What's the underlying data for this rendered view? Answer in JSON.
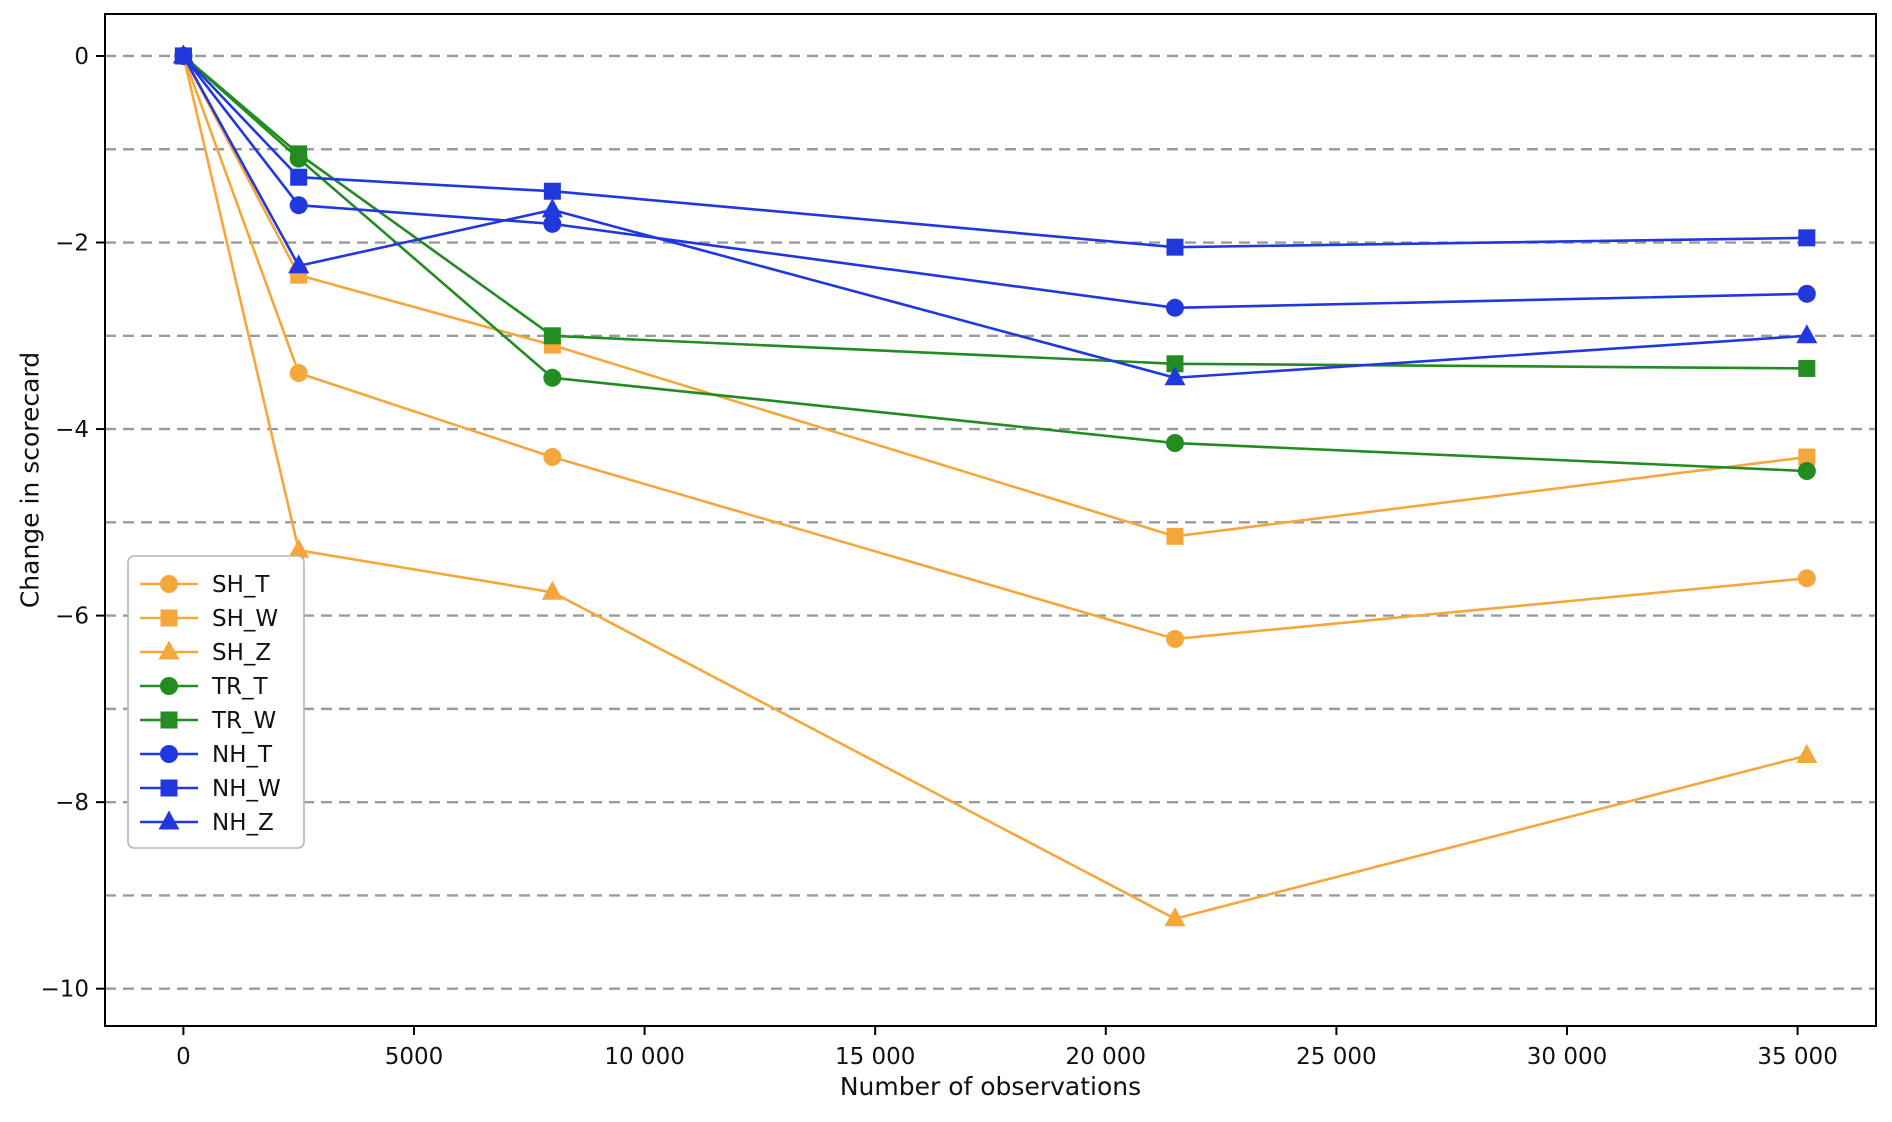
{
  "chart_data": {
    "type": "line",
    "title": "",
    "xlabel": "Number of observations",
    "ylabel": "Change in scorecard",
    "x": [
      0,
      2500,
      8000,
      21500,
      35200
    ],
    "series": [
      {
        "name": "SH_T",
        "color": "#F6A73B",
        "marker": "circle",
        "values": [
          0,
          -3.4,
          -4.3,
          -6.25,
          -5.6
        ]
      },
      {
        "name": "SH_W",
        "color": "#F6A73B",
        "marker": "square",
        "values": [
          0,
          -2.35,
          -3.1,
          -5.15,
          -4.3
        ]
      },
      {
        "name": "SH_Z",
        "color": "#F6A73B",
        "marker": "triangle",
        "values": [
          0,
          -5.3,
          -5.75,
          -9.25,
          -7.5
        ]
      },
      {
        "name": "TR_T",
        "color": "#228B22",
        "marker": "circle",
        "values": [
          0,
          -1.1,
          -3.45,
          -4.15,
          -4.45
        ]
      },
      {
        "name": "TR_W",
        "color": "#228B22",
        "marker": "square",
        "values": [
          0,
          -1.05,
          -3.0,
          -3.3,
          -3.35
        ]
      },
      {
        "name": "NH_T",
        "color": "#2138DF",
        "marker": "circle",
        "values": [
          0,
          -1.6,
          -1.8,
          -2.7,
          -2.55
        ]
      },
      {
        "name": "NH_W",
        "color": "#2138DF",
        "marker": "square",
        "values": [
          0,
          -1.3,
          -1.45,
          -2.05,
          -1.95
        ]
      },
      {
        "name": "NH_Z",
        "color": "#2138DF",
        "marker": "triangle",
        "values": [
          0,
          -2.25,
          -1.65,
          -3.45,
          -3.0
        ]
      }
    ],
    "xticks": {
      "values": [
        0,
        5000,
        10000,
        15000,
        20000,
        25000,
        30000,
        35000
      ],
      "labels": [
        "0",
        "5000",
        "10 000",
        "15 000",
        "20 000",
        "25 000",
        "30 000",
        "35 000"
      ]
    },
    "yticks": {
      "values": [
        0,
        -2,
        -4,
        -6,
        -8,
        -10
      ],
      "labels": [
        "0",
        "−2",
        "−4",
        "−6",
        "−8",
        "−10"
      ]
    },
    "grid": {
      "y_values": [
        0,
        -1,
        -2,
        -3,
        -4,
        -5,
        -6,
        -7,
        -8,
        -9,
        -10
      ],
      "style": "dashed",
      "color": "#9B9B9B"
    },
    "xlim": [
      -1700,
      36700
    ],
    "ylim": [
      -10.4,
      0.45
    ],
    "legend": {
      "position": "lower-left",
      "entries": [
        "SH_T",
        "SH_W",
        "SH_Z",
        "TR_T",
        "TR_W",
        "NH_T",
        "NH_W",
        "NH_Z"
      ]
    },
    "colors": {
      "frame": "#000000",
      "background": "#ffffff",
      "legend_border": "#B5B5B5"
    }
  }
}
